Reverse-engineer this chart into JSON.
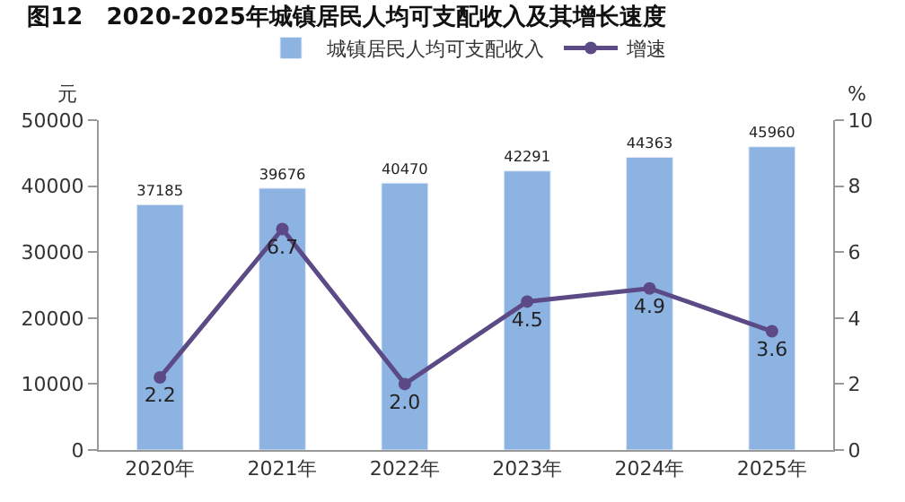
{
  "chart_data": {
    "type": "bar",
    "title": "图12　2020-2025年城镇居民人均可支配收入及其增长速度",
    "ylabel": "元",
    "y2label": "%",
    "categories": [
      "2020年",
      "2021年",
      "2022年",
      "2023年",
      "2024年",
      "2025年"
    ],
    "series": [
      {
        "name": "城镇居民人均可支配收入",
        "color": "#8db3e2",
        "values": [
          37185,
          39676,
          40470,
          42291,
          44363,
          45960
        ]
      },
      {
        "name": "增速",
        "type": "line",
        "axis": "y2",
        "color": "#5b4a86",
        "marker": "circle",
        "values": [
          2.2,
          6.7,
          2.0,
          4.5,
          4.9,
          3.6
        ],
        "value_labels": [
          "2.2",
          "6.7",
          "2.0",
          "4.5",
          "4.9",
          "3.6"
        ]
      }
    ],
    "ylim": [
      0,
      50000
    ],
    "yticks": [
      0,
      10000,
      20000,
      30000,
      40000,
      50000
    ],
    "y2lim": [
      0,
      10
    ],
    "y2ticks": [
      0,
      2,
      4,
      6,
      8,
      10
    ],
    "data_labels": true,
    "legend": "top"
  }
}
